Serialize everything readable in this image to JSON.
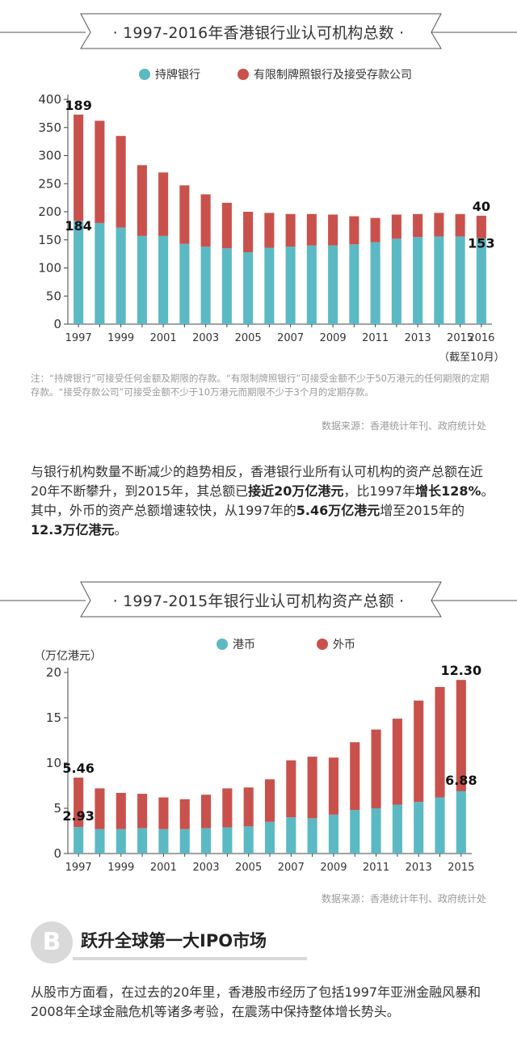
{
  "colors": {
    "licensed": "#5bb9c4",
    "restricted": "#c9514c",
    "hkd": "#5bb9c4",
    "foreign": "#c9514c",
    "axis_text": "#333333",
    "note_text": "#9a9a9a"
  },
  "banner1": {
    "title": "· 1997-2016年香港银行业认可机构总数 ·"
  },
  "banner2": {
    "title": "· 1997-2015年银行业认可机构资产总额 ·"
  },
  "legend1": {
    "licensed": "持牌银行",
    "restricted": "有限制牌照银行及接受存款公司"
  },
  "legend2": {
    "hkd": "港币",
    "foreign": "外币"
  },
  "chart1_extra": {
    "cutoff_note": "（截至10月）"
  },
  "note": {
    "text": "注：“持牌银行”可接受任何金额及期限的存款。“有限制牌照银行”可接受金额不少于50万港元的任何期限的定期存款。“接受存款公司”可接受金额不少于10万港元而期限不少于3个月的定期存款。"
  },
  "source1": "数据来源：香港统计年刊、政府统计处",
  "source2": "数据来源：香港统计年刊、政府统计处",
  "para1": {
    "p1": "与银行机构数量不断减少的趋势相反，香港银行业所有认可机构的资产总额在近20年不断攀升，到2015年，其总额已",
    "b1": "接近20万亿港元",
    "p2": "，比1997年",
    "b2": "增长128%",
    "p3": "。其中，外币的资产总额增速较快，从1997年的",
    "b3": "5.46万亿港元",
    "p4": "增至2015年的",
    "b4": "12.3万亿港元",
    "p5": "。"
  },
  "sectionB": {
    "letter": "B",
    "title": "跃升全球第一大IPO市场"
  },
  "para2": {
    "text": "从股市方面看，在过去的20年里，香港股市经历了包括1997年亚洲金融风暴和2008年全球金融危机等诸多考验，在震荡中保持整体增长势头。"
  },
  "chart_data": [
    {
      "type": "bar",
      "stacked": true,
      "title": "1997-2016年香港银行业认可机构总数",
      "categories": [
        "1997",
        "1998",
        "1999",
        "2000",
        "2001",
        "2002",
        "2003",
        "2004",
        "2005",
        "2006",
        "2007",
        "2008",
        "2009",
        "2010",
        "2011",
        "2012",
        "2013",
        "2014",
        "2015",
        "2016"
      ],
      "tick_labels": [
        "1997",
        "1999",
        "2001",
        "2003",
        "2005",
        "2007",
        "2009",
        "2011",
        "2013",
        "2015",
        "2016"
      ],
      "series": [
        {
          "name": "持牌银行",
          "values": [
            184,
            180,
            172,
            157,
            157,
            143,
            138,
            135,
            128,
            136,
            138,
            140,
            140,
            142,
            146,
            152,
            155,
            156,
            156,
            153
          ]
        },
        {
          "name": "有限制牌照银行及接受存款公司",
          "values": [
            189,
            182,
            163,
            126,
            113,
            104,
            93,
            81,
            72,
            62,
            58,
            56,
            55,
            50,
            43,
            43,
            41,
            42,
            40,
            40
          ]
        }
      ],
      "yticks": [
        0,
        50,
        100,
        150,
        200,
        250,
        300,
        350,
        400
      ],
      "ylim": [
        0,
        400
      ],
      "data_labels": [
        {
          "text": "189",
          "series": 1,
          "index": 0,
          "position": "top"
        },
        {
          "text": "184",
          "series": 0,
          "index": 0,
          "position": "top"
        },
        {
          "text": "40",
          "series": 1,
          "index": 19,
          "position": "top"
        },
        {
          "text": "153",
          "series": 0,
          "index": 19,
          "position": "top"
        }
      ],
      "xlabel": "",
      "ylabel": ""
    },
    {
      "type": "bar",
      "stacked": true,
      "title": "1997-2015年银行业认可机构资产总额",
      "ylabel": "（万亿港元）",
      "categories": [
        "1997",
        "1998",
        "1999",
        "2000",
        "2001",
        "2002",
        "2003",
        "2004",
        "2005",
        "2006",
        "2007",
        "2008",
        "2009",
        "2010",
        "2011",
        "2012",
        "2013",
        "2014",
        "2015"
      ],
      "tick_labels": [
        "1997",
        "1999",
        "2001",
        "2003",
        "2005",
        "2007",
        "2009",
        "2011",
        "2013",
        "2015"
      ],
      "series": [
        {
          "name": "港币",
          "values": [
            2.93,
            2.7,
            2.7,
            2.8,
            2.7,
            2.7,
            2.8,
            2.9,
            3.0,
            3.5,
            4.0,
            3.9,
            4.3,
            4.8,
            5.0,
            5.4,
            5.7,
            6.2,
            6.88
          ]
        },
        {
          "name": "外币",
          "values": [
            5.46,
            4.5,
            4.0,
            3.8,
            3.5,
            3.3,
            3.7,
            4.3,
            4.3,
            4.7,
            6.3,
            6.8,
            6.3,
            7.5,
            8.7,
            9.5,
            11.2,
            12.2,
            12.3
          ]
        }
      ],
      "yticks": [
        0,
        5,
        10,
        15,
        20
      ],
      "ylim": [
        0,
        20
      ],
      "data_labels": [
        {
          "text": "5.46",
          "series": 1,
          "index": 0,
          "position": "top"
        },
        {
          "text": "2.93",
          "series": 0,
          "index": 0,
          "position": "top"
        },
        {
          "text": "12.30",
          "series": 1,
          "index": 18,
          "position": "top"
        },
        {
          "text": "6.88",
          "series": 0,
          "index": 18,
          "position": "top"
        }
      ],
      "xlabel": ""
    }
  ]
}
